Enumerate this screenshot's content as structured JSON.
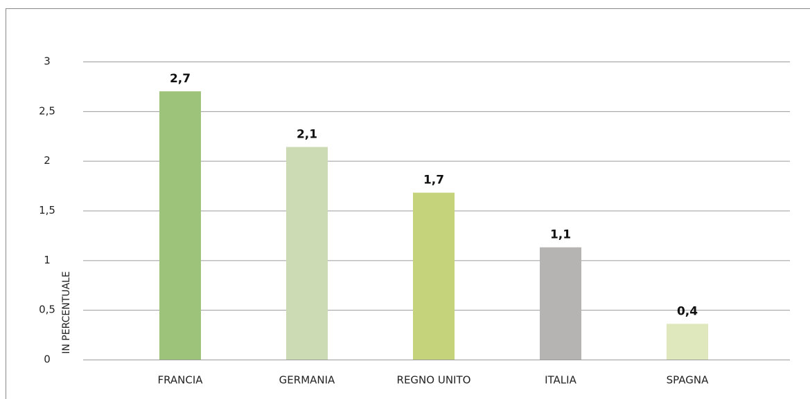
{
  "chart_data": {
    "type": "bar",
    "ylabel": "IN PERCENTUALE",
    "categories": [
      "FRANCIA",
      "GERMANIA",
      "REGNO UNITO",
      "ITALIA",
      "SPAGNA"
    ],
    "values": [
      2.7,
      2.14,
      1.68,
      1.13,
      0.36
    ],
    "value_labels": [
      "2,7",
      "2,1",
      "1,7",
      "1,1",
      "0,4"
    ],
    "colors": [
      "#9dc27a",
      "#cddbb4",
      "#c5d47b",
      "#b5b4b3",
      "#dfe7bd"
    ],
    "ylim": [
      0,
      3
    ],
    "yticks": [
      0,
      {
        "value": 0.5,
        "label": "0,5"
      },
      1,
      {
        "value": 1.5,
        "label": "1,5"
      },
      2,
      {
        "value": 2.5,
        "label": "2,5"
      },
      3
    ],
    "grid": true
  }
}
